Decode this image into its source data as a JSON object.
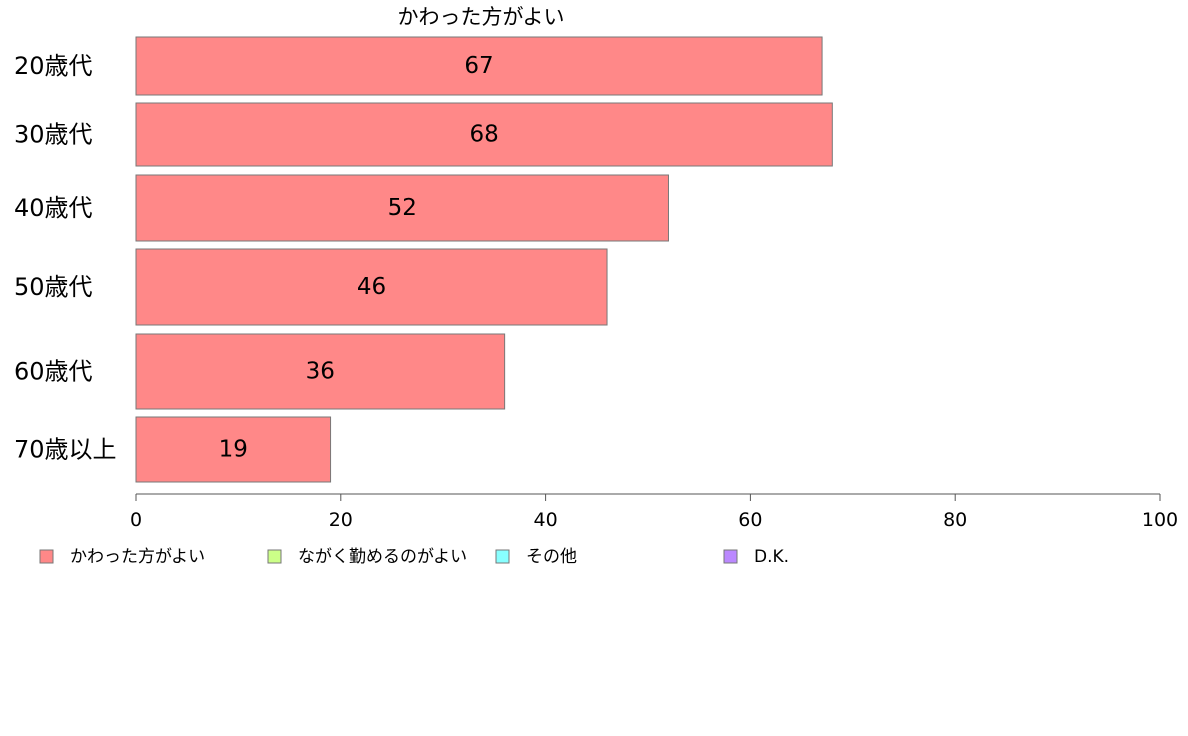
{
  "chart_data": {
    "type": "bar",
    "orientation": "horizontal",
    "stacked": true,
    "title": "かわった方がよい",
    "categories": [
      "20歳代",
      "30歳代",
      "40歳代",
      "50歳代",
      "60歳代",
      "70歳以上"
    ],
    "series": [
      {
        "name": "かわった方がよい",
        "color": "#ff8888",
        "values": [
          67,
          68,
          52,
          46,
          36,
          19
        ]
      },
      {
        "name": "ながく勤めるのがよい",
        "color": "#ccff88",
        "values": [
          null,
          null,
          null,
          null,
          null,
          null
        ]
      },
      {
        "name": "その他",
        "color": "#88ffff",
        "values": [
          null,
          null,
          null,
          null,
          null,
          null
        ]
      },
      {
        "name": "D.K.",
        "color": "#bb88ff",
        "values": [
          null,
          null,
          null,
          null,
          null,
          null
        ]
      }
    ],
    "data_labels": [
      "67",
      "68",
      "52",
      "46",
      "36",
      "19"
    ],
    "xlim": [
      0,
      100
    ],
    "xticks": [
      0,
      20,
      40,
      60,
      80,
      100
    ],
    "xlabel": "",
    "ylabel": "",
    "grid": false,
    "legend_position": "bottom"
  }
}
